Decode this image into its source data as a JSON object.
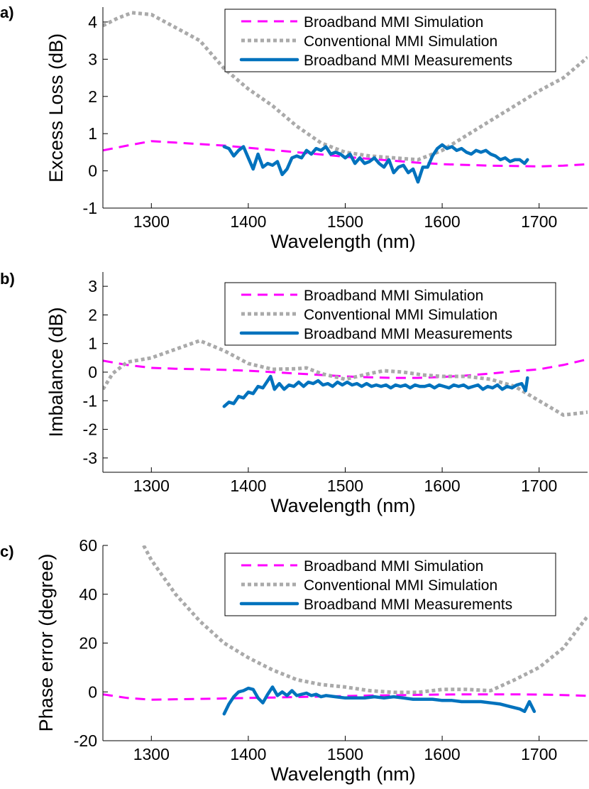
{
  "chart_data": [
    {
      "type": "line",
      "panel_label": "a)",
      "xlabel": "Wavelength (nm)",
      "ylabel": "Excess Loss (dB)",
      "xlim": [
        1250,
        1750
      ],
      "ylim": [
        -1,
        4.4
      ],
      "xticks": [
        1300,
        1400,
        1500,
        1600,
        1700
      ],
      "yticks": [
        -1,
        0,
        1,
        2,
        3,
        4
      ],
      "legend_position": "top-right",
      "grid": false,
      "series": [
        {
          "name": "Broadband MMI Simulation",
          "style": "dashed",
          "color": "#ff00ff",
          "x": [
            1250,
            1275,
            1300,
            1325,
            1350,
            1375,
            1400,
            1425,
            1450,
            1475,
            1500,
            1525,
            1550,
            1575,
            1600,
            1625,
            1650,
            1675,
            1700,
            1725,
            1750
          ],
          "y": [
            0.55,
            0.68,
            0.8,
            0.76,
            0.72,
            0.68,
            0.62,
            0.56,
            0.5,
            0.44,
            0.38,
            0.32,
            0.27,
            0.22,
            0.18,
            0.16,
            0.14,
            0.13,
            0.12,
            0.14,
            0.18
          ]
        },
        {
          "name": "Conventional MMI Simulation",
          "style": "dotted",
          "color": "#aaaaaa",
          "x": [
            1250,
            1265,
            1280,
            1300,
            1325,
            1350,
            1375,
            1400,
            1425,
            1450,
            1475,
            1500,
            1525,
            1550,
            1575,
            1600,
            1625,
            1650,
            1675,
            1700,
            1725,
            1750
          ],
          "y": [
            3.9,
            4.1,
            4.25,
            4.2,
            3.85,
            3.5,
            2.75,
            2.2,
            1.75,
            1.2,
            0.75,
            0.5,
            0.4,
            0.35,
            0.3,
            0.55,
            0.95,
            1.35,
            1.75,
            2.15,
            2.5,
            3.05
          ]
        },
        {
          "name": "Broadband MMI Measurements",
          "style": "solid",
          "color": "#0072bd",
          "x": [
            1375,
            1380,
            1385,
            1390,
            1395,
            1400,
            1405,
            1410,
            1415,
            1420,
            1425,
            1430,
            1435,
            1440,
            1445,
            1450,
            1455,
            1460,
            1465,
            1470,
            1475,
            1480,
            1485,
            1490,
            1495,
            1500,
            1505,
            1510,
            1515,
            1520,
            1525,
            1530,
            1535,
            1540,
            1545,
            1550,
            1555,
            1560,
            1565,
            1570,
            1575,
            1580,
            1585,
            1590,
            1595,
            1600,
            1605,
            1610,
            1615,
            1620,
            1625,
            1630,
            1635,
            1640,
            1645,
            1650,
            1655,
            1660,
            1665,
            1670,
            1675,
            1680,
            1685,
            1688
          ],
          "y": [
            0.65,
            0.6,
            0.4,
            0.55,
            0.65,
            0.35,
            0.05,
            0.45,
            0.1,
            0.2,
            0.15,
            0.25,
            -0.1,
            0.05,
            0.35,
            0.4,
            0.35,
            0.55,
            0.45,
            0.6,
            0.55,
            0.65,
            0.45,
            0.5,
            0.45,
            0.35,
            0.45,
            0.2,
            0.35,
            0.2,
            0.25,
            0.35,
            0.2,
            0.1,
            0.3,
            -0.05,
            0.1,
            0.15,
            -0.05,
            0.05,
            -0.3,
            0.1,
            0.1,
            0.4,
            0.6,
            0.7,
            0.6,
            0.65,
            0.55,
            0.6,
            0.5,
            0.45,
            0.55,
            0.5,
            0.55,
            0.45,
            0.4,
            0.3,
            0.35,
            0.25,
            0.3,
            0.3,
            0.2,
            0.3
          ]
        }
      ]
    },
    {
      "type": "line",
      "panel_label": "b)",
      "xlabel": "Wavelength (nm)",
      "ylabel": "Imbalance (dB)",
      "xlim": [
        1250,
        1750
      ],
      "ylim": [
        -3.5,
        3.5
      ],
      "xticks": [
        1300,
        1400,
        1500,
        1600,
        1700
      ],
      "yticks": [
        -3,
        -2,
        -1,
        0,
        1,
        2,
        3
      ],
      "legend_position": "top-right",
      "grid": false,
      "series": [
        {
          "name": "Broadband MMI Simulation",
          "style": "dashed",
          "color": "#ff00ff",
          "x": [
            1250,
            1275,
            1300,
            1325,
            1350,
            1375,
            1400,
            1425,
            1450,
            1475,
            1500,
            1525,
            1550,
            1575,
            1600,
            1625,
            1650,
            1675,
            1700,
            1725,
            1750
          ],
          "y": [
            0.4,
            0.25,
            0.15,
            0.12,
            0.1,
            0.08,
            0.05,
            0.0,
            -0.05,
            -0.1,
            -0.15,
            -0.18,
            -0.2,
            -0.2,
            -0.17,
            -0.12,
            -0.05,
            0.03,
            0.1,
            0.25,
            0.45
          ]
        },
        {
          "name": "Conventional MMI Simulation",
          "style": "dotted",
          "color": "#aaaaaa",
          "x": [
            1250,
            1260,
            1275,
            1300,
            1325,
            1350,
            1375,
            1400,
            1425,
            1450,
            1460,
            1475,
            1500,
            1525,
            1540,
            1560,
            1580,
            1600,
            1625,
            1650,
            1675,
            1700,
            1725,
            1750
          ],
          "y": [
            -0.6,
            -0.05,
            0.35,
            0.5,
            0.8,
            1.1,
            0.75,
            0.3,
            0.1,
            0.12,
            0.15,
            -0.05,
            -0.25,
            -0.05,
            0.05,
            0.0,
            -0.1,
            -0.15,
            -0.15,
            -0.25,
            -0.5,
            -1.0,
            -1.5,
            -1.4
          ]
        },
        {
          "name": "Broadband MMI Measurements",
          "style": "solid",
          "color": "#0072bd",
          "x": [
            1375,
            1380,
            1385,
            1390,
            1395,
            1400,
            1405,
            1410,
            1415,
            1420,
            1423,
            1427,
            1432,
            1437,
            1442,
            1447,
            1452,
            1457,
            1462,
            1467,
            1472,
            1477,
            1482,
            1487,
            1492,
            1497,
            1502,
            1507,
            1512,
            1517,
            1522,
            1527,
            1532,
            1537,
            1542,
            1547,
            1552,
            1557,
            1562,
            1567,
            1572,
            1577,
            1582,
            1587,
            1592,
            1597,
            1602,
            1607,
            1612,
            1617,
            1622,
            1627,
            1632,
            1637,
            1642,
            1647,
            1652,
            1657,
            1662,
            1667,
            1672,
            1677,
            1682,
            1686,
            1688
          ],
          "y": [
            -1.2,
            -1.05,
            -1.1,
            -0.85,
            -0.9,
            -0.7,
            -0.75,
            -0.5,
            -0.55,
            -0.3,
            -0.15,
            -0.6,
            -0.4,
            -0.6,
            -0.45,
            -0.5,
            -0.35,
            -0.5,
            -0.35,
            -0.4,
            -0.3,
            -0.45,
            -0.4,
            -0.5,
            -0.35,
            -0.45,
            -0.35,
            -0.45,
            -0.4,
            -0.5,
            -0.4,
            -0.5,
            -0.45,
            -0.5,
            -0.45,
            -0.55,
            -0.45,
            -0.5,
            -0.45,
            -0.55,
            -0.45,
            -0.5,
            -0.5,
            -0.45,
            -0.55,
            -0.45,
            -0.5,
            -0.55,
            -0.45,
            -0.5,
            -0.45,
            -0.55,
            -0.5,
            -0.45,
            -0.6,
            -0.5,
            -0.55,
            -0.45,
            -0.6,
            -0.5,
            -0.55,
            -0.45,
            -0.4,
            -0.65,
            -0.2
          ]
        }
      ]
    },
    {
      "type": "line",
      "panel_label": "c)",
      "xlabel": "Wavelength (nm)",
      "ylabel": "Phase error (degree)",
      "xlim": [
        1250,
        1750
      ],
      "ylim": [
        -20,
        60
      ],
      "xticks": [
        1300,
        1400,
        1500,
        1600,
        1700
      ],
      "yticks": [
        -20,
        0,
        20,
        40,
        60
      ],
      "legend_position": "top-right",
      "grid": false,
      "series": [
        {
          "name": "Broadband MMI Simulation",
          "style": "dashed",
          "color": "#ff00ff",
          "x": [
            1250,
            1275,
            1300,
            1325,
            1350,
            1375,
            1400,
            1425,
            1450,
            1475,
            1500,
            1525,
            1550,
            1575,
            1600,
            1625,
            1650,
            1675,
            1700,
            1725,
            1750
          ],
          "y": [
            -1.0,
            -2.5,
            -3.2,
            -3.0,
            -2.9,
            -2.7,
            -2.5,
            -2.3,
            -2.1,
            -1.9,
            -1.7,
            -1.5,
            -1.4,
            -1.2,
            -1.1,
            -1.0,
            -1.0,
            -1.0,
            -1.1,
            -1.3,
            -1.6
          ]
        },
        {
          "name": "Conventional MMI Simulation",
          "style": "dotted",
          "color": "#aaaaaa",
          "x": [
            1292,
            1300,
            1325,
            1350,
            1375,
            1400,
            1425,
            1450,
            1475,
            1500,
            1525,
            1550,
            1575,
            1600,
            1625,
            1650,
            1675,
            1700,
            1725,
            1750
          ],
          "y": [
            60,
            54,
            40,
            29,
            20,
            14,
            9,
            5,
            3,
            2,
            0.5,
            -0.2,
            -0.2,
            1,
            1,
            0.5,
            5,
            10,
            18,
            31
          ]
        },
        {
          "name": "Broadband MMI Measurements",
          "style": "solid",
          "color": "#0072bd",
          "x": [
            1375,
            1380,
            1385,
            1390,
            1395,
            1400,
            1405,
            1410,
            1415,
            1420,
            1425,
            1430,
            1435,
            1440,
            1445,
            1450,
            1455,
            1460,
            1465,
            1470,
            1475,
            1480,
            1490,
            1500,
            1510,
            1520,
            1530,
            1540,
            1550,
            1560,
            1570,
            1580,
            1590,
            1600,
            1610,
            1620,
            1630,
            1640,
            1650,
            1660,
            1670,
            1680,
            1685,
            1690,
            1695
          ],
          "y": [
            -9,
            -5,
            -2,
            0,
            0.5,
            1.5,
            1.0,
            -2.5,
            -4.5,
            -1,
            2,
            -1.5,
            0,
            -1.5,
            0.5,
            -1.5,
            -1,
            -0.5,
            -1.5,
            -1,
            -2,
            -1.5,
            -2,
            -2.5,
            -2.5,
            -2.5,
            -2,
            -2.5,
            -2,
            -2.5,
            -3,
            -3,
            -3,
            -3.5,
            -3.5,
            -4,
            -4,
            -4,
            -4.5,
            -5,
            -6,
            -7,
            -8,
            -4,
            -8
          ]
        }
      ]
    }
  ]
}
